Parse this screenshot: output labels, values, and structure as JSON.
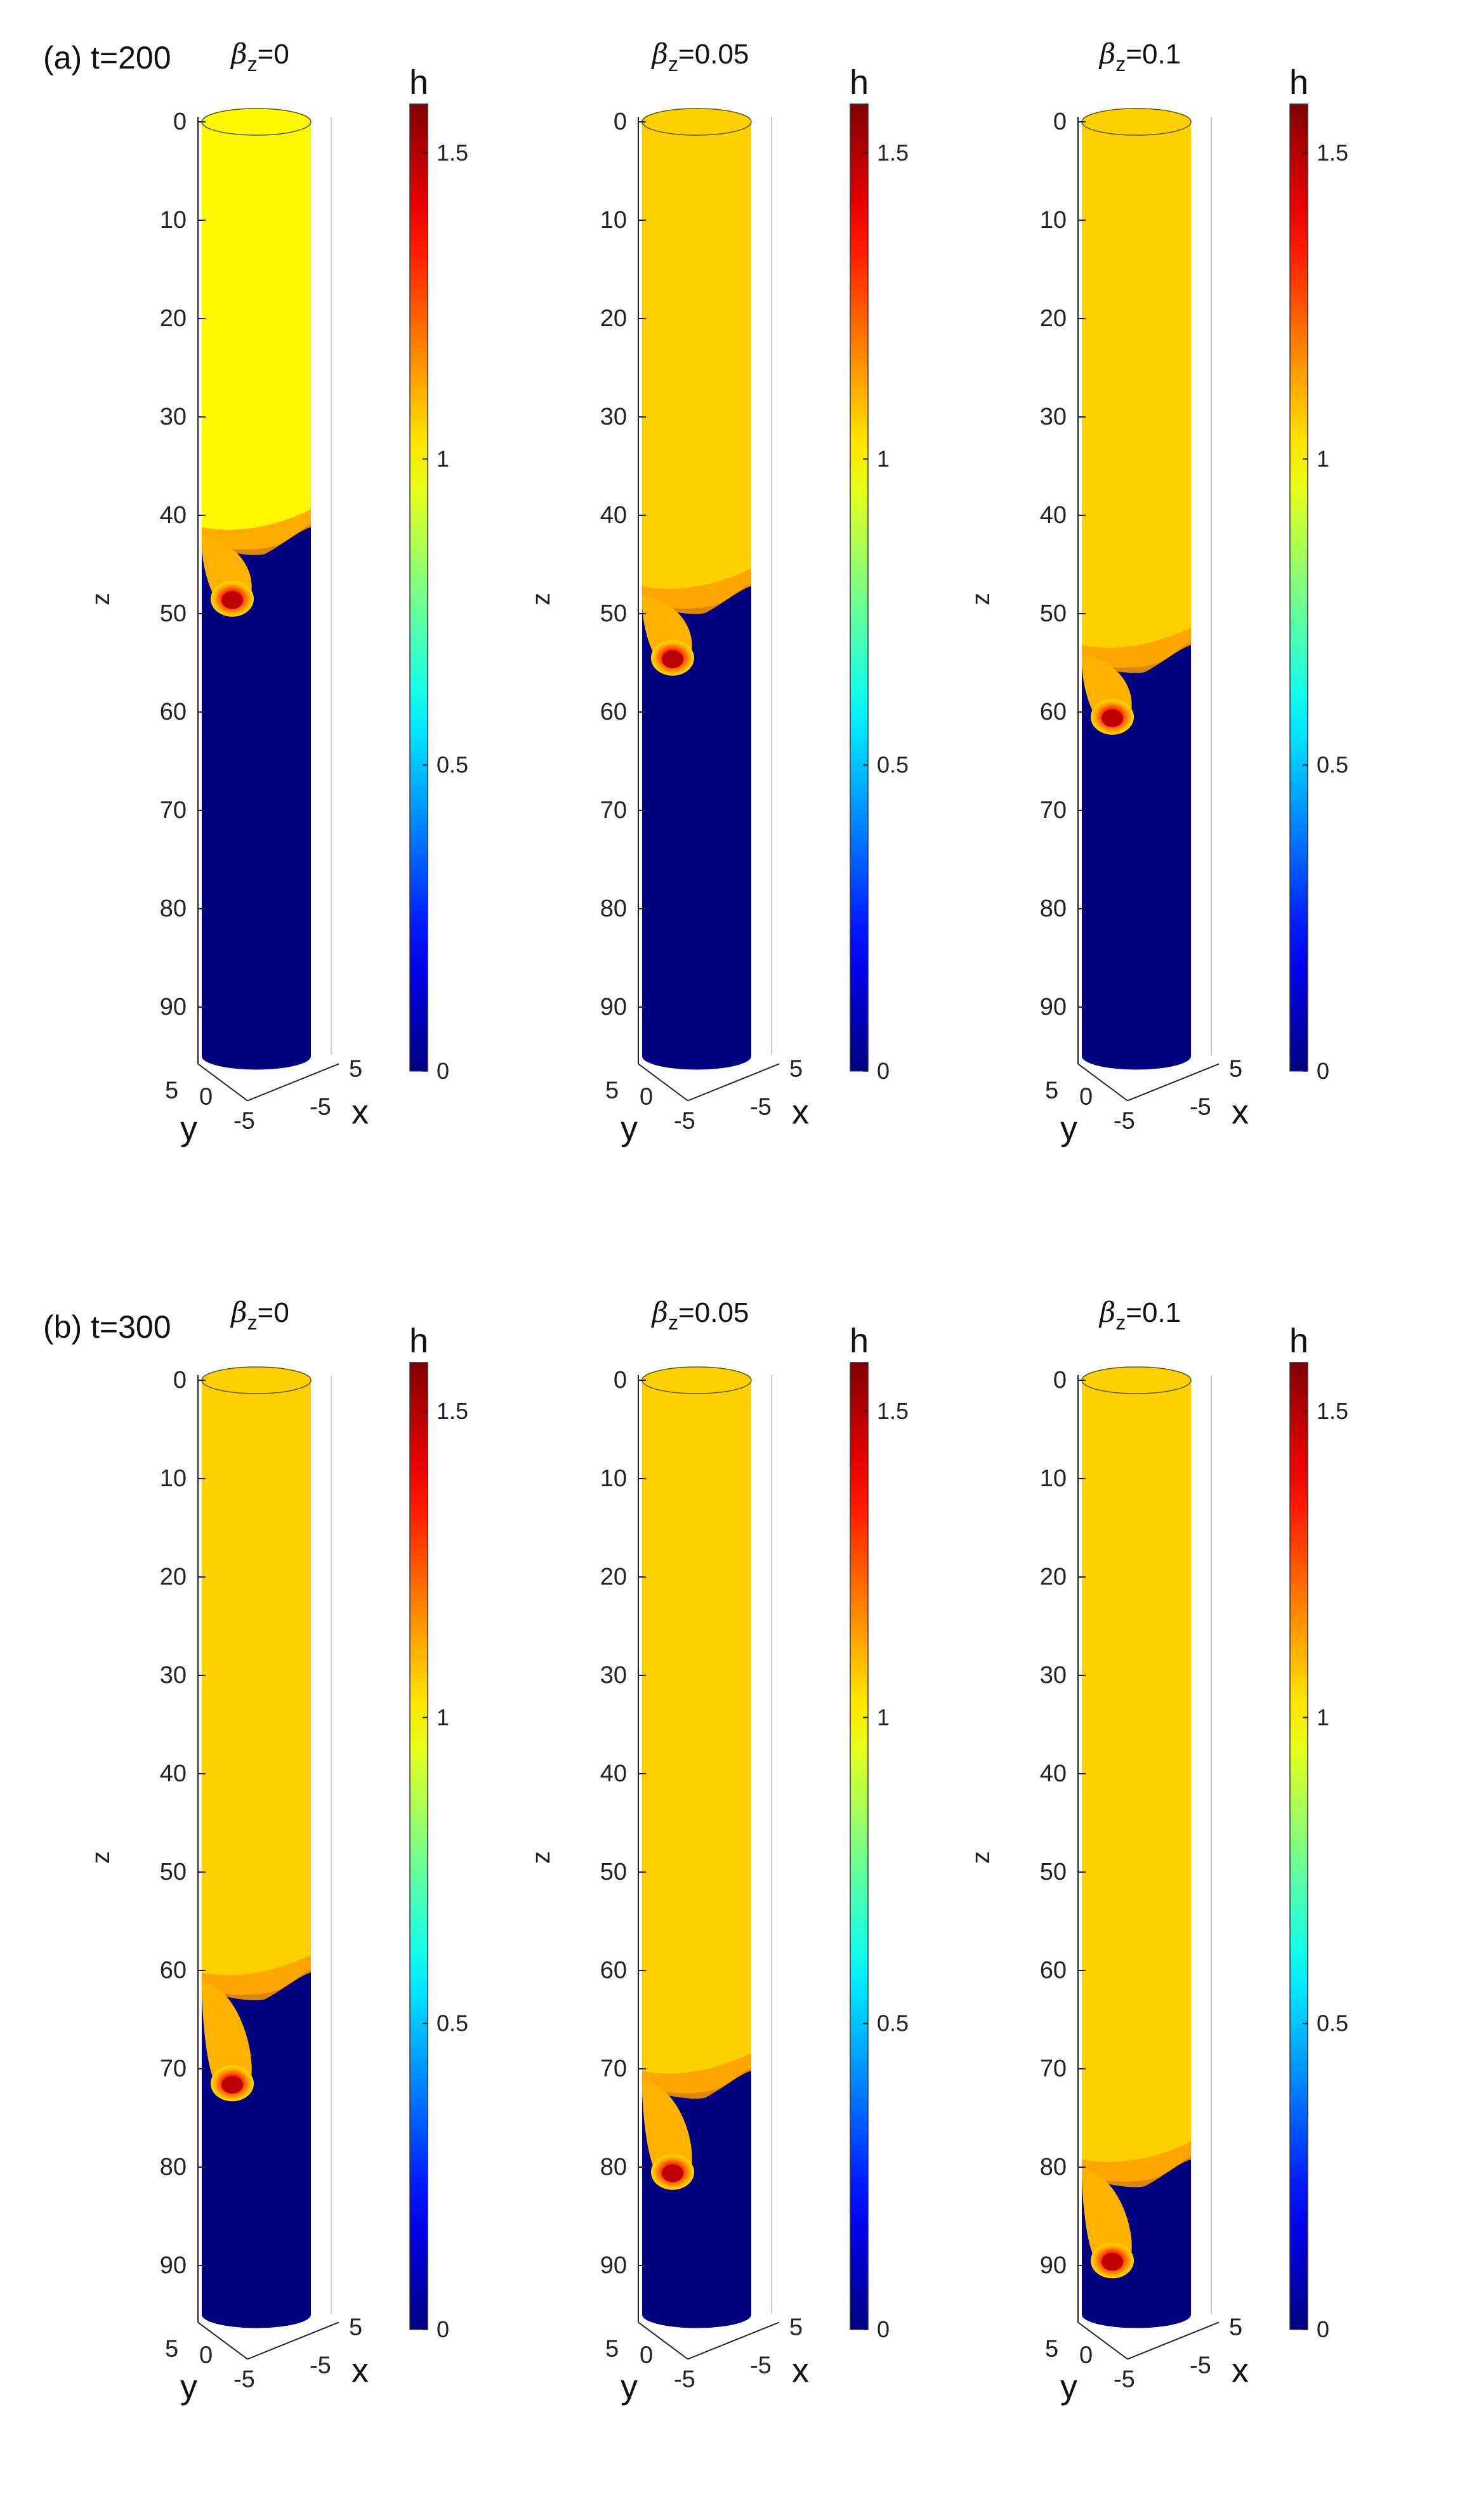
{
  "figure": {
    "rows": [
      {
        "label": "(a) t=200"
      },
      {
        "label": "(b) t=300"
      }
    ]
  },
  "chart_data": [
    {
      "type": "heatmap",
      "row": "(a) t=200",
      "beta_label": "z",
      "beta_value": "=0",
      "zlabel": "z",
      "xlabel": "x",
      "ylabel": "y",
      "colorbar_label": "h",
      "z_ticks": [
        0,
        10,
        20,
        30,
        40,
        50,
        60,
        70,
        80,
        90
      ],
      "zlim": [
        0,
        95
      ],
      "x_ticks": [
        "5",
        "-5"
      ],
      "y_ticks": [
        "5",
        "0",
        "-5"
      ],
      "colorbar_ticks": [
        0,
        0.5,
        1,
        1.5
      ],
      "clim": [
        0,
        1.58
      ],
      "upper_h": 1.0,
      "lower_h": 0,
      "front_z": 42.5,
      "drop_z": 48.5,
      "peak_h": 1.58
    },
    {
      "type": "heatmap",
      "row": "(a) t=200",
      "beta_label": "z",
      "beta_value": "=0.05",
      "zlabel": "z",
      "xlabel": "x",
      "ylabel": "y",
      "colorbar_label": "h",
      "z_ticks": [
        0,
        10,
        20,
        30,
        40,
        50,
        60,
        70,
        80,
        90
      ],
      "zlim": [
        0,
        95
      ],
      "x_ticks": [
        "5",
        "-5"
      ],
      "y_ticks": [
        "5",
        "0",
        "-5"
      ],
      "colorbar_ticks": [
        0,
        0.5,
        1,
        1.5
      ],
      "clim": [
        0,
        1.58
      ],
      "upper_h": 1.06,
      "lower_h": 0,
      "front_z": 48.5,
      "drop_z": 54.5,
      "peak_h": 1.58
    },
    {
      "type": "heatmap",
      "row": "(a) t=200",
      "beta_label": "z",
      "beta_value": "=0.1",
      "zlabel": "z",
      "xlabel": "x",
      "ylabel": "y",
      "colorbar_label": "h",
      "z_ticks": [
        0,
        10,
        20,
        30,
        40,
        50,
        60,
        70,
        80,
        90
      ],
      "zlim": [
        0,
        95
      ],
      "x_ticks": [
        "5",
        "-5"
      ],
      "y_ticks": [
        "5",
        "0",
        "-5"
      ],
      "colorbar_ticks": [
        0,
        0.5,
        1,
        1.5
      ],
      "clim": [
        0,
        1.58
      ],
      "upper_h": 1.06,
      "lower_h": 0,
      "front_z": 54.5,
      "drop_z": 60.5,
      "peak_h": 1.58
    },
    {
      "type": "heatmap",
      "row": "(b) t=300",
      "beta_label": "z",
      "beta_value": "=0",
      "zlabel": "z",
      "xlabel": "x",
      "ylabel": "y",
      "colorbar_label": "h",
      "z_ticks": [
        0,
        10,
        20,
        30,
        40,
        50,
        60,
        70,
        80,
        90
      ],
      "zlim": [
        0,
        95
      ],
      "x_ticks": [
        "5",
        "-5"
      ],
      "y_ticks": [
        "5",
        "0",
        "-5"
      ],
      "colorbar_ticks": [
        0,
        0.5,
        1,
        1.5
      ],
      "clim": [
        0,
        1.58
      ],
      "upper_h": 1.06,
      "lower_h": 0,
      "front_z": 61.5,
      "drop_z": 71.5,
      "peak_h": 1.58
    },
    {
      "type": "heatmap",
      "row": "(b) t=300",
      "beta_label": "z",
      "beta_value": "=0.05",
      "zlabel": "z",
      "xlabel": "x",
      "ylabel": "y",
      "colorbar_label": "h",
      "z_ticks": [
        0,
        10,
        20,
        30,
        40,
        50,
        60,
        70,
        80,
        90
      ],
      "zlim": [
        0,
        95
      ],
      "x_ticks": [
        "5",
        "-5"
      ],
      "y_ticks": [
        "5",
        "0",
        "-5"
      ],
      "colorbar_ticks": [
        0,
        0.5,
        1,
        1.5
      ],
      "clim": [
        0,
        1.58
      ],
      "upper_h": 1.06,
      "lower_h": 0,
      "front_z": 71.5,
      "drop_z": 80.5,
      "peak_h": 1.58
    },
    {
      "type": "heatmap",
      "row": "(b) t=300",
      "beta_label": "z",
      "beta_value": "=0.1",
      "zlabel": "z",
      "xlabel": "x",
      "ylabel": "y",
      "colorbar_label": "h",
      "z_ticks": [
        0,
        10,
        20,
        30,
        40,
        50,
        60,
        70,
        80,
        90
      ],
      "zlim": [
        0,
        95
      ],
      "x_ticks": [
        "5",
        "-5"
      ],
      "y_ticks": [
        "5",
        "0",
        "-5"
      ],
      "colorbar_ticks": [
        0,
        0.5,
        1,
        1.5
      ],
      "clim": [
        0,
        1.58
      ],
      "upper_h": 1.06,
      "lower_h": 0,
      "front_z": 80.5,
      "drop_z": 89.5,
      "peak_h": 1.58
    }
  ]
}
